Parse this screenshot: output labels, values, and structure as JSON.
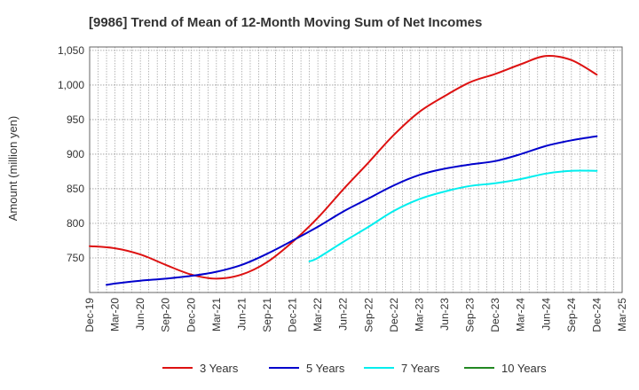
{
  "chart_data": {
    "type": "line",
    "title": "[9986]  Trend of Mean of 12-Month Moving Sum of Net Incomes",
    "ylabel": "Amount (million yen)",
    "xlabel": "",
    "ylim": [
      700,
      1055
    ],
    "yticks": [
      750,
      800,
      850,
      900,
      950,
      1000,
      1050
    ],
    "ytick_labels": [
      "750",
      "800",
      "850",
      "900",
      "950",
      "1,000",
      "1,050"
    ],
    "x_start": "Dec-19",
    "x_end": "Mar-25",
    "xtick_labels": [
      "Dec-19",
      "Mar-20",
      "Jun-20",
      "Sep-20",
      "Dec-20",
      "Mar-21",
      "Jun-21",
      "Sep-21",
      "Dec-21",
      "Mar-22",
      "Jun-22",
      "Sep-22",
      "Dec-22",
      "Mar-23",
      "Jun-23",
      "Sep-23",
      "Dec-23",
      "Mar-24",
      "Jun-24",
      "Sep-24",
      "Dec-24",
      "Mar-25"
    ],
    "grid": true,
    "legend_position": "bottom",
    "series": [
      {
        "name": "3 Years",
        "color": "#dd1111",
        "points": [
          [
            "Dec-19",
            767
          ],
          [
            "Mar-20",
            764
          ],
          [
            "Jun-20",
            755
          ],
          [
            "Sep-20",
            740
          ],
          [
            "Dec-20",
            726
          ],
          [
            "Mar-21",
            720
          ],
          [
            "Jun-21",
            726
          ],
          [
            "Sep-21",
            744
          ],
          [
            "Dec-21",
            773
          ],
          [
            "Mar-22",
            808
          ],
          [
            "Jun-22",
            849
          ],
          [
            "Sep-22",
            888
          ],
          [
            "Dec-22",
            928
          ],
          [
            "Mar-23",
            961
          ],
          [
            "Jun-23",
            984
          ],
          [
            "Sep-23",
            1004
          ],
          [
            "Dec-23",
            1016
          ],
          [
            "Mar-24",
            1030
          ],
          [
            "Jun-24",
            1042
          ],
          [
            "Sep-24",
            1036
          ],
          [
            "Dec-24",
            1015
          ]
        ]
      },
      {
        "name": "5 Years",
        "color": "#0000cc",
        "points": [
          [
            "Feb-20",
            711
          ],
          [
            "Mar-20",
            713
          ],
          [
            "Jun-20",
            717
          ],
          [
            "Sep-20",
            720
          ],
          [
            "Dec-20",
            724
          ],
          [
            "Mar-21",
            730
          ],
          [
            "Jun-21",
            740
          ],
          [
            "Sep-21",
            756
          ],
          [
            "Dec-21",
            775
          ],
          [
            "Mar-22",
            795
          ],
          [
            "Jun-22",
            817
          ],
          [
            "Sep-22",
            836
          ],
          [
            "Dec-22",
            855
          ],
          [
            "Mar-23",
            870
          ],
          [
            "Jun-23",
            879
          ],
          [
            "Sep-23",
            885
          ],
          [
            "Dec-23",
            890
          ],
          [
            "Mar-24",
            900
          ],
          [
            "Jun-24",
            912
          ],
          [
            "Sep-24",
            920
          ],
          [
            "Dec-24",
            926
          ]
        ]
      },
      {
        "name": "7 Years",
        "color": "#00eeee",
        "points": [
          [
            "Feb-22",
            745
          ],
          [
            "Mar-22",
            750
          ],
          [
            "Jun-22",
            773
          ],
          [
            "Sep-22",
            795
          ],
          [
            "Dec-22",
            818
          ],
          [
            "Mar-23",
            835
          ],
          [
            "Jun-23",
            846
          ],
          [
            "Sep-23",
            854
          ],
          [
            "Dec-23",
            858
          ],
          [
            "Mar-24",
            864
          ],
          [
            "Jun-24",
            872
          ],
          [
            "Sep-24",
            876
          ],
          [
            "Dec-24",
            876
          ]
        ]
      },
      {
        "name": "10 Years",
        "color": "#228822",
        "points": []
      }
    ]
  }
}
